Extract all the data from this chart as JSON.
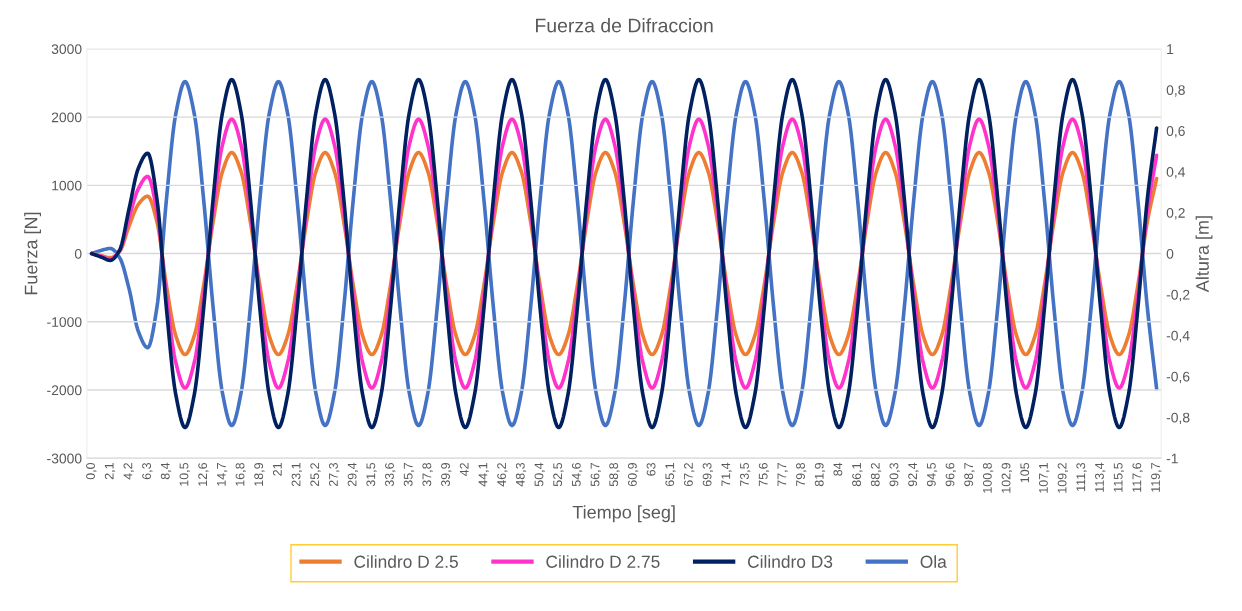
{
  "chart_data": {
    "type": "line",
    "title": "Fuerza de Difraccion",
    "xlabel": "Tiempo [seg]",
    "ylabel": "Fuerza [N]",
    "y2label": "Altura [m]",
    "categories": [
      "0,0",
      null,
      "2,1",
      null,
      "4,2",
      null,
      "6,3",
      null,
      "8,4",
      null,
      "10,5",
      null,
      "12,6",
      null,
      "14,7",
      null,
      "16,8",
      null,
      "18,9",
      null,
      "21",
      null,
      "23,1",
      null,
      "25,2",
      null,
      "27,3",
      null,
      "29,4",
      null,
      "31,5",
      null,
      "33,6",
      null,
      "35,7",
      null,
      "37,8",
      null,
      "39,9",
      null,
      "42",
      null,
      "44,1",
      null,
      "46,2",
      null,
      "48,3",
      null,
      "50,4",
      null,
      "52,5",
      null,
      "54,6",
      null,
      "56,7",
      null,
      "58,8",
      null,
      "60,9",
      null,
      "63",
      null,
      "65,1",
      null,
      "67,2",
      null,
      "69,3",
      null,
      "71,4",
      null,
      "73,5",
      null,
      "75,6",
      null,
      "77,7",
      null,
      "79,8",
      null,
      "81,9",
      null,
      "84",
      null,
      "86,1",
      null,
      "88,2",
      null,
      "90,3",
      null,
      "92,4",
      null,
      "94,5",
      null,
      "96,6",
      null,
      "98,7",
      null,
      "100,8",
      null,
      "102,9",
      null,
      "105",
      null,
      "107,1",
      null,
      "109,2",
      null,
      "111,3",
      null,
      "113,4",
      null,
      "115,5",
      null,
      "117,6",
      null,
      "119,7"
    ],
    "series": [
      {
        "name": "Cilindro D 2.5",
        "color": "#ed7d31",
        "values": [
          0,
          -30,
          -60,
          30,
          400,
          720,
          840,
          460,
          -460,
          -1200,
          -1480,
          -1200,
          -460,
          460,
          1200,
          1480,
          1200,
          460,
          -460,
          -1200,
          -1480,
          -1200,
          -460,
          460,
          1200,
          1480,
          1200,
          460,
          -460,
          -1200,
          -1480,
          -1200,
          -460,
          460,
          1200,
          1480,
          1200,
          460,
          -460,
          -1200,
          -1480,
          -1200,
          -460,
          460,
          1200,
          1480,
          1200,
          460,
          -460,
          -1200,
          -1480,
          -1200,
          -460,
          460,
          1200,
          1480,
          1200,
          460,
          -460,
          -1200,
          -1480,
          -1200,
          -460,
          460,
          1200,
          1480,
          1200,
          460,
          -460,
          -1200,
          -1480,
          -1200,
          -460,
          460,
          1200,
          1480,
          1200,
          460,
          -460,
          -1200,
          -1480,
          -1200,
          -460,
          460,
          1200,
          1480,
          1200,
          460,
          -460,
          -1200,
          -1480,
          -1200,
          -460,
          460,
          1200,
          1480,
          1200,
          460,
          -460,
          -1200,
          -1480,
          -1200,
          -460,
          460,
          1200,
          1480,
          1200,
          460,
          -460,
          -1200,
          -1480,
          -1200,
          -460,
          460,
          1100
        ]
      },
      {
        "name": "Cilindro D 2.75",
        "color": "#ff33cc",
        "values": [
          0,
          -40,
          -80,
          40,
          520,
          950,
          1130,
          610,
          -610,
          -1590,
          -1970,
          -1590,
          -610,
          610,
          1590,
          1970,
          1590,
          610,
          -610,
          -1590,
          -1970,
          -1590,
          -610,
          610,
          1590,
          1970,
          1590,
          610,
          -610,
          -1590,
          -1970,
          -1590,
          -610,
          610,
          1590,
          1970,
          1590,
          610,
          -610,
          -1590,
          -1970,
          -1590,
          -610,
          610,
          1590,
          1970,
          1590,
          610,
          -610,
          -1590,
          -1970,
          -1590,
          -610,
          610,
          1590,
          1970,
          1590,
          610,
          -610,
          -1590,
          -1970,
          -1590,
          -610,
          610,
          1590,
          1970,
          1590,
          610,
          -610,
          -1590,
          -1970,
          -1590,
          -610,
          610,
          1590,
          1970,
          1590,
          610,
          -610,
          -1590,
          -1970,
          -1590,
          -610,
          610,
          1590,
          1970,
          1590,
          610,
          -610,
          -1590,
          -1970,
          -1590,
          -610,
          610,
          1590,
          1970,
          1590,
          610,
          -610,
          -1590,
          -1970,
          -1590,
          -610,
          610,
          1590,
          1970,
          1590,
          610,
          -610,
          -1590,
          -1970,
          -1590,
          -610,
          610,
          1440
        ]
      },
      {
        "name": "Cilindro D3",
        "color": "#002060",
        "values": [
          0,
          -50,
          -100,
          50,
          650,
          1250,
          1470,
          790,
          -790,
          -2060,
          -2550,
          -2060,
          -790,
          790,
          2060,
          2550,
          2060,
          790,
          -790,
          -2060,
          -2550,
          -2060,
          -790,
          790,
          2060,
          2550,
          2060,
          790,
          -790,
          -2060,
          -2550,
          -2060,
          -790,
          790,
          2060,
          2550,
          2060,
          790,
          -790,
          -2060,
          -2550,
          -2060,
          -790,
          790,
          2060,
          2550,
          2060,
          790,
          -790,
          -2060,
          -2550,
          -2060,
          -790,
          790,
          2060,
          2550,
          2060,
          790,
          -790,
          -2060,
          -2550,
          -2060,
          -790,
          790,
          2060,
          2550,
          2060,
          790,
          -790,
          -2060,
          -2550,
          -2060,
          -790,
          790,
          2060,
          2550,
          2060,
          790,
          -790,
          -2060,
          -2550,
          -2060,
          -790,
          790,
          2060,
          2550,
          2060,
          790,
          -790,
          -2060,
          -2550,
          -2060,
          -790,
          790,
          2060,
          2550,
          2060,
          790,
          -790,
          -2060,
          -2550,
          -2060,
          -790,
          790,
          2060,
          2550,
          2060,
          790,
          -790,
          -2060,
          -2550,
          -2060,
          -790,
          790,
          1840
        ]
      },
      {
        "name": "Ola",
        "color": "#4472c4",
        "axis": "y2",
        "values": [
          0,
          0.015,
          0.025,
          -0.02,
          -0.17,
          -0.38,
          -0.46,
          -0.26,
          0.26,
          0.68,
          0.84,
          0.68,
          0.26,
          -0.26,
          -0.68,
          -0.84,
          -0.68,
          -0.26,
          0.26,
          0.68,
          0.84,
          0.68,
          0.26,
          -0.26,
          -0.68,
          -0.84,
          -0.68,
          -0.26,
          0.26,
          0.68,
          0.84,
          0.68,
          0.26,
          -0.26,
          -0.68,
          -0.84,
          -0.68,
          -0.26,
          0.26,
          0.68,
          0.84,
          0.68,
          0.26,
          -0.26,
          -0.68,
          -0.84,
          -0.68,
          -0.26,
          0.26,
          0.68,
          0.84,
          0.68,
          0.26,
          -0.26,
          -0.68,
          -0.84,
          -0.68,
          -0.26,
          0.26,
          0.68,
          0.84,
          0.68,
          0.26,
          -0.26,
          -0.68,
          -0.84,
          -0.68,
          -0.26,
          0.26,
          0.68,
          0.84,
          0.68,
          0.26,
          -0.26,
          -0.68,
          -0.84,
          -0.68,
          -0.26,
          0.26,
          0.68,
          0.84,
          0.68,
          0.26,
          -0.26,
          -0.68,
          -0.84,
          -0.68,
          -0.26,
          0.26,
          0.68,
          0.84,
          0.68,
          0.26,
          -0.26,
          -0.68,
          -0.84,
          -0.68,
          -0.26,
          0.26,
          0.68,
          0.84,
          0.68,
          0.26,
          -0.26,
          -0.68,
          -0.84,
          -0.68,
          -0.26,
          0.26,
          0.68,
          0.84,
          0.68,
          0.26,
          -0.26,
          -0.66
        ]
      }
    ],
    "ylim": [
      -3000,
      3000
    ],
    "yticks": [
      -3000,
      -2000,
      -1000,
      0,
      1000,
      2000,
      3000
    ],
    "y2lim": [
      -1,
      1
    ],
    "y2ticks": [
      {
        "value": -1,
        "label": "-1"
      },
      {
        "value": -0.8,
        "label": "-0,8"
      },
      {
        "value": -0.6,
        "label": "-0,6"
      },
      {
        "value": -0.4,
        "label": "-0,4"
      },
      {
        "value": -0.2,
        "label": "-0,2"
      },
      {
        "value": 0,
        "label": "0"
      },
      {
        "value": 0.2,
        "label": "0,2"
      },
      {
        "value": 0.4,
        "label": "0,4"
      },
      {
        "value": 0.6,
        "label": "0,6"
      },
      {
        "value": 0.8,
        "label": "0,8"
      },
      {
        "value": 1,
        "label": "1"
      }
    ],
    "grid": "y",
    "legend": "bottom",
    "line_style": "solid"
  }
}
